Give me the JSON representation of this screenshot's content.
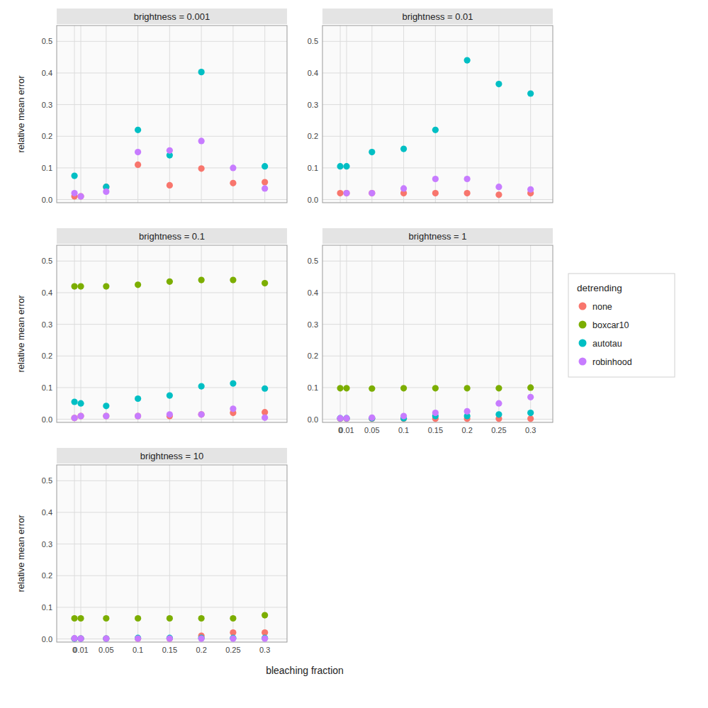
{
  "chart_data": [
    {
      "type": "scatter",
      "title": "brightness = 0.001",
      "ylabel": "relative mean error",
      "x": [
        0,
        0.01,
        0.05,
        0.1,
        0.15,
        0.2,
        0.25,
        0.3
      ],
      "series": [
        {
          "name": "none",
          "color": "#F8766D",
          "values": [
            0.01,
            0.01,
            0.04,
            0.11,
            0.045,
            0.098,
            0.052,
            0.055
          ]
        },
        {
          "name": "boxcar10",
          "color": "#7CAE00",
          "values": [
            null,
            null,
            null,
            null,
            null,
            null,
            null,
            null
          ]
        },
        {
          "name": "autotau",
          "color": "#00BFC4",
          "values": [
            0.075,
            null,
            0.04,
            0.22,
            0.14,
            0.403,
            null,
            0.105
          ]
        },
        {
          "name": "robinhood",
          "color": "#C77CFF",
          "values": [
            0.02,
            0.01,
            0.025,
            0.15,
            0.155,
            0.185,
            0.1,
            0.035
          ]
        }
      ],
      "xlim": [
        -0.028,
        0.335
      ],
      "xticks": [
        0,
        0.01,
        0.05,
        0.1,
        0.15,
        0.2,
        0.25,
        0.3
      ],
      "ylim": [
        -0.01,
        0.55
      ],
      "yticks": [
        {
          "value": 0.0,
          "label": "0.0"
        },
        0.1,
        0.2,
        0.3,
        0.4,
        0.5
      ],
      "grid": true,
      "tick_labels": "y"
    },
    {
      "type": "scatter",
      "title": "brightness = 0.01",
      "x": [
        0,
        0.01,
        0.05,
        0.1,
        0.15,
        0.2,
        0.25,
        0.3
      ],
      "series": [
        {
          "name": "none",
          "color": "#F8766D",
          "values": [
            0.02,
            0.02,
            0.02,
            0.02,
            0.02,
            0.02,
            0.015,
            0.02
          ]
        },
        {
          "name": "boxcar10",
          "color": "#7CAE00",
          "values": [
            null,
            null,
            null,
            null,
            null,
            null,
            null,
            null
          ]
        },
        {
          "name": "autotau",
          "color": "#00BFC4",
          "values": [
            0.105,
            0.105,
            0.15,
            0.16,
            0.22,
            0.44,
            0.365,
            0.335
          ]
        },
        {
          "name": "robinhood",
          "color": "#C77CFF",
          "values": [
            null,
            0.02,
            0.02,
            0.035,
            0.065,
            0.065,
            0.04,
            0.032
          ]
        }
      ],
      "xlim": [
        -0.028,
        0.335
      ],
      "xticks": [
        0,
        0.01,
        0.05,
        0.1,
        0.15,
        0.2,
        0.25,
        0.3
      ],
      "ylim": [
        -0.01,
        0.55
      ],
      "yticks": [
        {
          "value": 0.0,
          "label": "0.0"
        },
        0.1,
        0.2,
        0.3,
        0.4,
        0.5
      ],
      "grid": true,
      "tick_labels": "y"
    },
    {
      "type": "scatter",
      "title": "brightness = 0.1",
      "ylabel": "relative mean error",
      "x": [
        0,
        0.01,
        0.05,
        0.1,
        0.15,
        0.2,
        0.25,
        0.3
      ],
      "series": [
        {
          "name": "none",
          "color": "#F8766D",
          "values": [
            0.004,
            0.01,
            0.01,
            0.01,
            0.01,
            0.015,
            0.02,
            0.022
          ]
        },
        {
          "name": "boxcar10",
          "color": "#7CAE00",
          "values": [
            0.42,
            0.42,
            0.42,
            0.425,
            0.435,
            0.44,
            0.44,
            0.43
          ]
        },
        {
          "name": "autotau",
          "color": "#00BFC4",
          "values": [
            0.055,
            0.05,
            0.042,
            0.065,
            0.075,
            0.104,
            0.113,
            0.097
          ]
        },
        {
          "name": "robinhood",
          "color": "#C77CFF",
          "values": [
            0.004,
            0.01,
            0.01,
            0.01,
            0.015,
            0.015,
            0.033,
            0.005
          ]
        }
      ],
      "xlim": [
        -0.028,
        0.335
      ],
      "xticks": [
        0,
        0.01,
        0.05,
        0.1,
        0.15,
        0.2,
        0.25,
        0.3
      ],
      "ylim": [
        -0.01,
        0.55
      ],
      "yticks": [
        {
          "value": 0.0,
          "label": "0.0"
        },
        0.1,
        0.2,
        0.3,
        0.4,
        0.5
      ],
      "grid": true,
      "tick_labels": "y"
    },
    {
      "type": "scatter",
      "title": "brightness = 1",
      "x": [
        0,
        0.01,
        0.05,
        0.1,
        0.15,
        0.2,
        0.25,
        0.3
      ],
      "series": [
        {
          "name": "none",
          "color": "#F8766D",
          "values": [
            0.002,
            0.002,
            0.002,
            0.002,
            0.002,
            0.002,
            0.002,
            0.002
          ]
        },
        {
          "name": "boxcar10",
          "color": "#7CAE00",
          "values": [
            0.098,
            0.098,
            0.097,
            0.098,
            0.098,
            0.098,
            0.098,
            0.1
          ]
        },
        {
          "name": "autotau",
          "color": "#00BFC4",
          "values": [
            0.003,
            0.003,
            0.003,
            0.003,
            0.01,
            0.01,
            0.015,
            0.02
          ]
        },
        {
          "name": "robinhood",
          "color": "#C77CFF",
          "values": [
            0.003,
            0.003,
            0.005,
            0.01,
            0.02,
            0.025,
            0.05,
            0.07
          ]
        }
      ],
      "xlim": [
        -0.028,
        0.335
      ],
      "xticks": [
        0,
        0.01,
        0.05,
        0.1,
        0.15,
        0.2,
        0.25,
        0.3
      ],
      "ylim": [
        -0.01,
        0.55
      ],
      "yticks": [
        {
          "value": 0.0,
          "label": "0.0"
        },
        0.1,
        0.2,
        0.3,
        0.4,
        0.5
      ],
      "grid": true,
      "legend": "right",
      "legend_title": "detrending"
    },
    {
      "type": "scatter",
      "title": "brightness = 10",
      "ylabel": "relative mean error",
      "xlabel": "bleaching fraction",
      "x": [
        0,
        0.01,
        0.05,
        0.1,
        0.15,
        0.2,
        0.25,
        0.3
      ],
      "series": [
        {
          "name": "none",
          "color": "#F8766D",
          "values": [
            0.001,
            0.001,
            0.001,
            0.001,
            0.001,
            0.01,
            0.02,
            0.02
          ]
        },
        {
          "name": "boxcar10",
          "color": "#7CAE00",
          "values": [
            0.065,
            0.065,
            0.065,
            0.065,
            0.065,
            0.065,
            0.065,
            0.075
          ]
        },
        {
          "name": "autotau",
          "color": "#00BFC4",
          "values": [
            0.001,
            0.001,
            0.001,
            0.003,
            0.003,
            0.003,
            0.003,
            0.003
          ]
        },
        {
          "name": "robinhood",
          "color": "#C77CFF",
          "values": [
            0.002,
            0.001,
            0.001,
            0.001,
            0.001,
            0.001,
            0.001,
            0.001
          ]
        }
      ],
      "xlim": [
        -0.028,
        0.335
      ],
      "xticks": [
        0,
        0.01,
        0.05,
        0.1,
        0.15,
        0.2,
        0.25,
        0.3
      ],
      "ylim": [
        -0.01,
        0.55
      ],
      "yticks": [
        {
          "value": 0.0,
          "label": "0.0"
        },
        0.1,
        0.2,
        0.3,
        0.4,
        0.5
      ],
      "grid": true
    }
  ]
}
